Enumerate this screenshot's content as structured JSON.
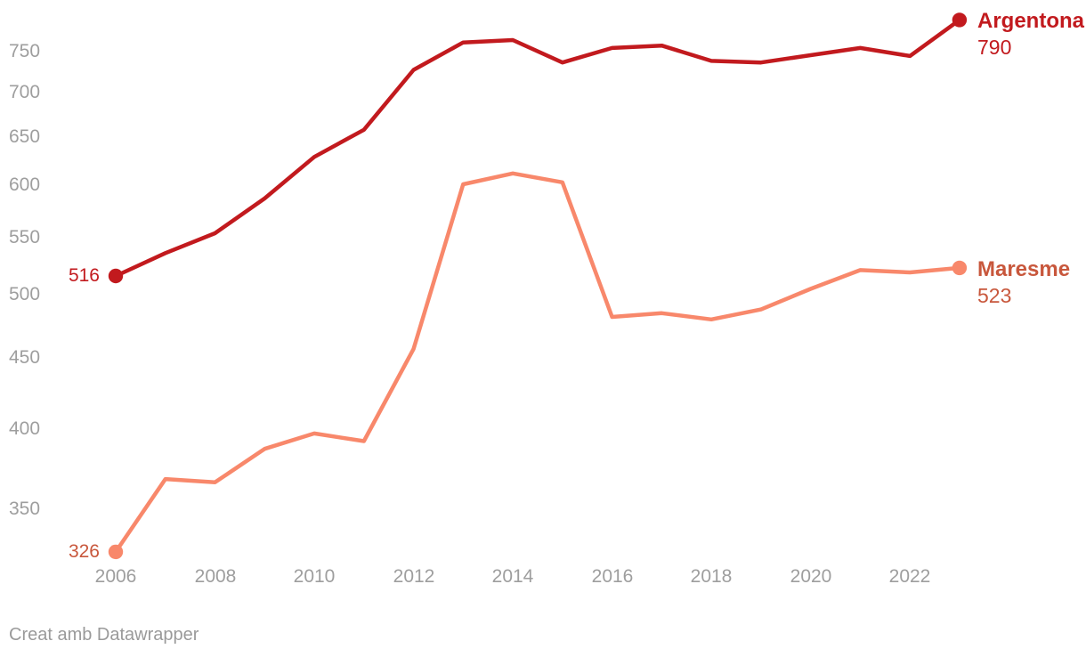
{
  "chart_data": {
    "type": "line",
    "title": "",
    "x": [
      2006,
      2007,
      2008,
      2009,
      2010,
      2011,
      2012,
      2013,
      2014,
      2015,
      2016,
      2017,
      2018,
      2019,
      2020,
      2021,
      2022,
      2023
    ],
    "series": [
      {
        "name": "Argentona",
        "color": "#c21a1e",
        "label_color": "#c21a1e",
        "start_label": "516",
        "end_label": "790",
        "values": [
          516,
          536,
          554,
          587,
          629,
          658,
          727,
          761,
          764,
          736,
          754,
          757,
          738,
          736,
          745,
          754,
          744,
          790
        ]
      },
      {
        "name": "Maresme",
        "color": "#f8886b",
        "label_color": "#c8573c",
        "start_label": "326",
        "end_label": "523",
        "values": [
          326,
          368,
          366,
          387,
          397,
          392,
          457,
          601,
          612,
          603,
          482,
          485,
          480,
          488,
          505,
          521,
          519,
          523
        ]
      }
    ],
    "x_axis": {
      "tick_years": [
        2006,
        2008,
        2010,
        2012,
        2014,
        2016,
        2018,
        2020,
        2022
      ]
    },
    "y_axis": {
      "scale": "log",
      "ticks": [
        750,
        700,
        650,
        600,
        550,
        500,
        450,
        400,
        350
      ]
    },
    "grid": false,
    "legend_position": "line-end-labels"
  },
  "footer": {
    "credit": "Creat amb Datawrapper"
  }
}
